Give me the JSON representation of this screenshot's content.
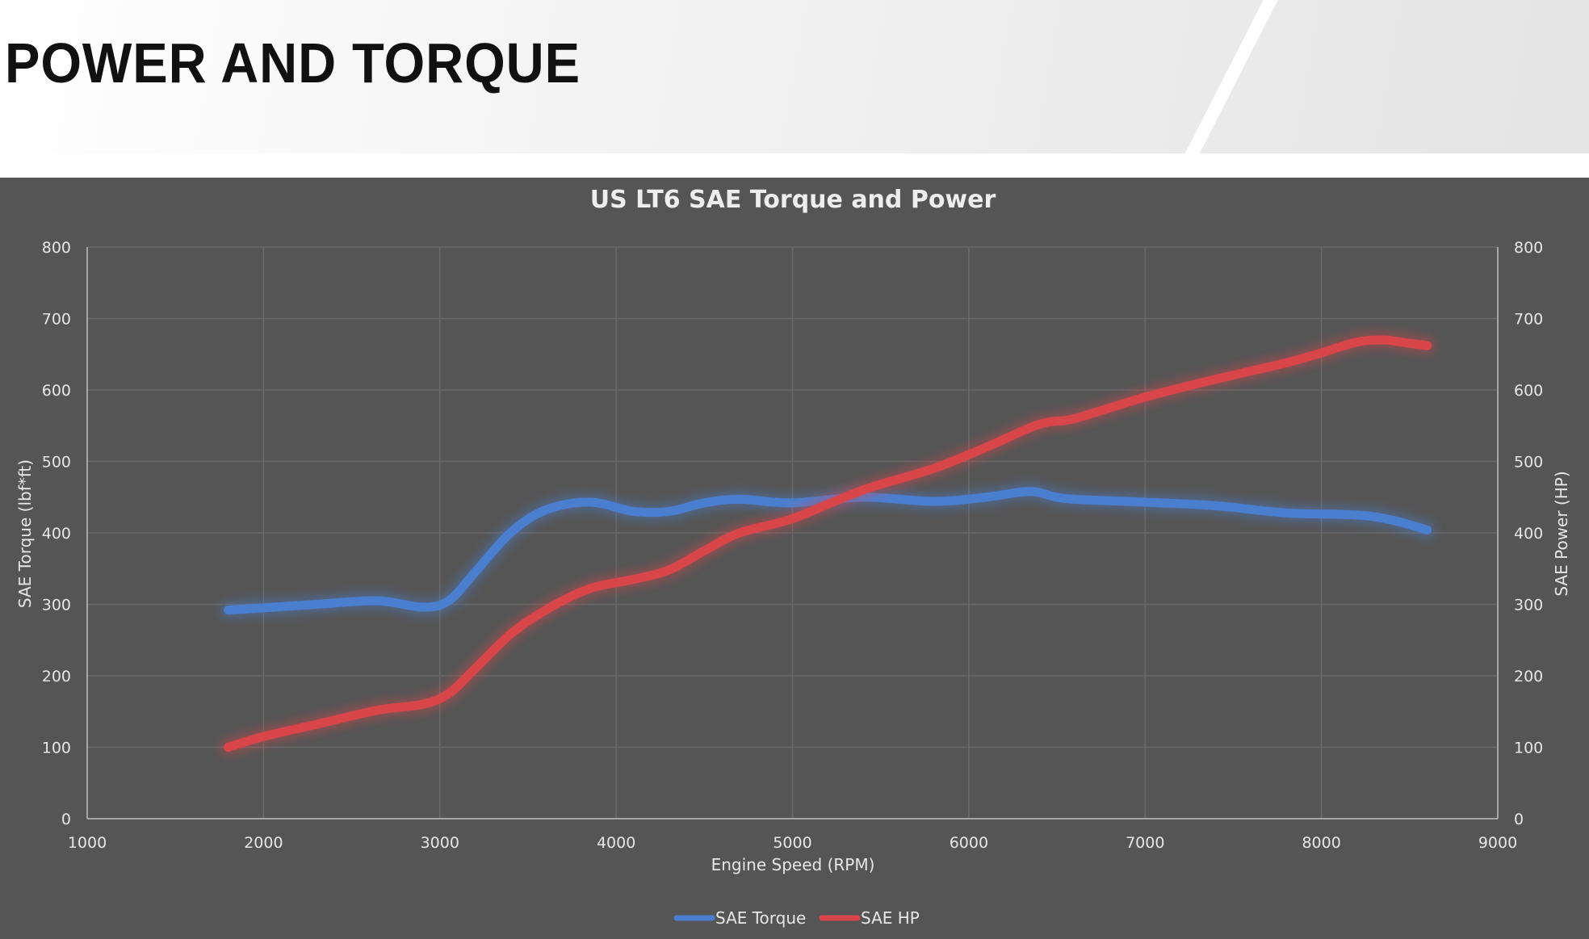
{
  "page": {
    "title": "POWER AND TORQUE"
  },
  "colors": {
    "torque": "#4a7fd0",
    "power": "#d9464a",
    "panel": "#555555",
    "grid": "#6a6a6a"
  },
  "chart_data": {
    "type": "line",
    "title": "US LT6 SAE Torque and Power",
    "xlabel": "Engine Speed (RPM)",
    "ylabel": "SAE Torque (lbf*ft)",
    "y2label": "SAE Power (HP)",
    "xlim": [
      1000,
      9000
    ],
    "ylim": [
      0,
      800
    ],
    "y2lim": [
      0,
      800
    ],
    "x_ticks": [
      "1000",
      "2000",
      "3000",
      "4000",
      "5000",
      "6000",
      "7000",
      "8000",
      "9000"
    ],
    "y_ticks": [
      "0",
      "100",
      "200",
      "300",
      "400",
      "500",
      "600",
      "700",
      "800"
    ],
    "y2_ticks": [
      "0",
      "100",
      "200",
      "300",
      "400",
      "500",
      "600",
      "700",
      "800"
    ],
    "grid": true,
    "legend_position": "bottom",
    "series": [
      {
        "name": "SAE Torque",
        "axis": "left",
        "color": "#4a7fd0",
        "x": [
          1800,
          2000,
          2300,
          2650,
          2900,
          3050,
          3200,
          3400,
          3600,
          3850,
          4100,
          4300,
          4500,
          4700,
          5000,
          5400,
          5800,
          6100,
          6350,
          6550,
          7000,
          7400,
          7800,
          8200,
          8400,
          8600
        ],
        "y": [
          292,
          295,
          300,
          305,
          296,
          305,
          345,
          400,
          432,
          443,
          430,
          430,
          442,
          447,
          442,
          450,
          444,
          450,
          458,
          448,
          443,
          438,
          428,
          425,
          418,
          404
        ]
      },
      {
        "name": "SAE HP",
        "axis": "right",
        "color": "#d9464a",
        "x": [
          1800,
          2000,
          2300,
          2650,
          2900,
          3050,
          3200,
          3400,
          3600,
          3850,
          4100,
          4300,
          4500,
          4700,
          5000,
          5400,
          5800,
          6100,
          6400,
          6600,
          7000,
          7400,
          7800,
          8000,
          8200,
          8350,
          8450,
          8600
        ],
        "y": [
          100,
          115,
          132,
          152,
          160,
          175,
          210,
          258,
          292,
          322,
          335,
          348,
          375,
          400,
          420,
          460,
          490,
          520,
          552,
          560,
          590,
          615,
          638,
          652,
          667,
          670,
          667,
          662
        ]
      }
    ]
  }
}
